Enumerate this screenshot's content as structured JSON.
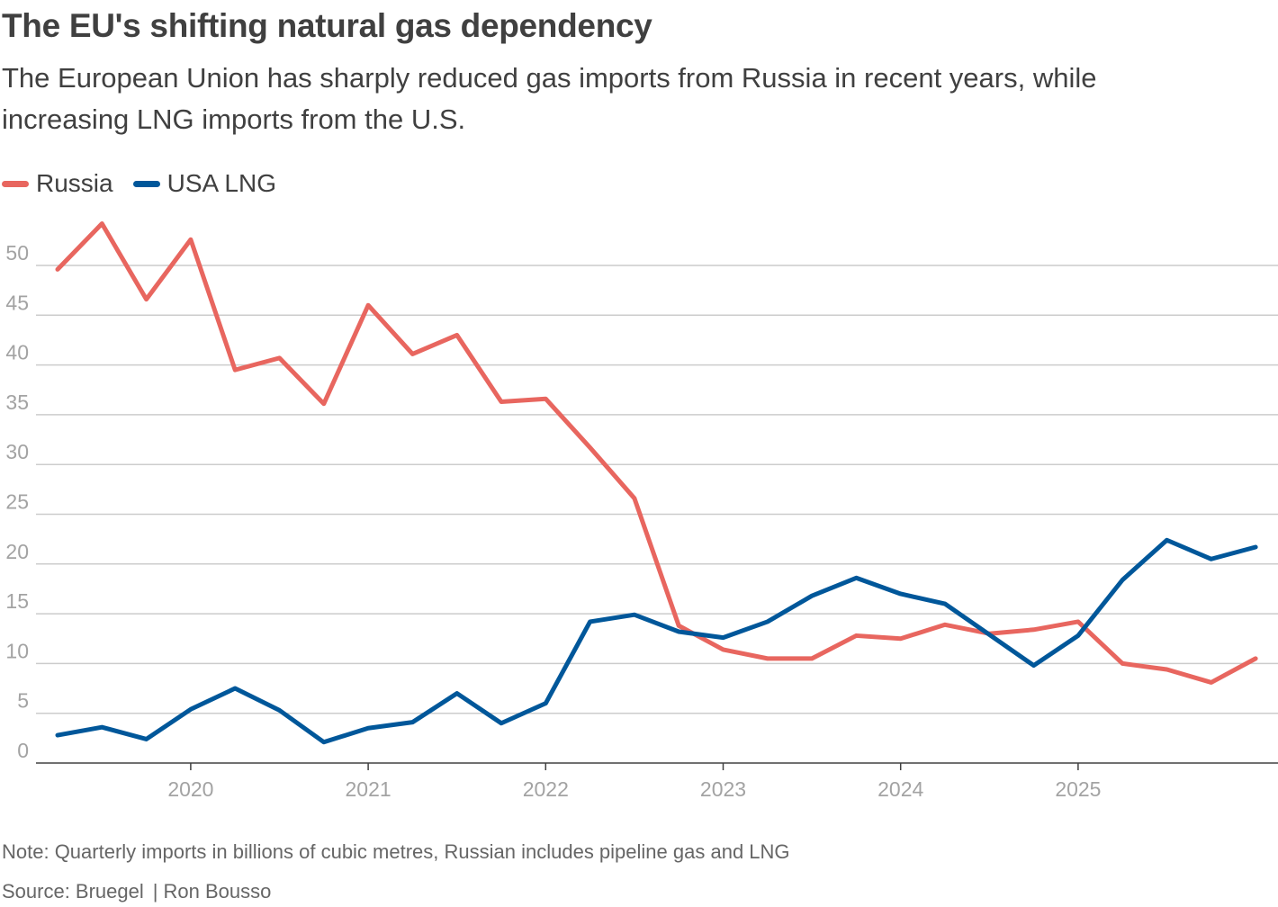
{
  "title": "The EU's shifting natural gas dependency",
  "subtitle": "The European Union has sharply reduced gas imports from Russia in recent years, while increasing LNG imports from the U.S.",
  "note": "Note: Quarterly imports in billions of cubic metres, Russian includes pipeline gas and LNG",
  "source": {
    "label": "Source: Bruegel",
    "author": "Ron Bousso"
  },
  "colors": {
    "russia": "#e8665f",
    "usa_lng": "#00579a",
    "grid": "#cccccc",
    "axis": "#404040",
    "tick_label": "#a3a3a3"
  },
  "chart_data": {
    "type": "line",
    "title": "The EU's shifting natural gas dependency",
    "xlabel": "",
    "ylabel": "",
    "ylim": [
      0,
      55
    ],
    "yticks": [
      0,
      5,
      10,
      15,
      20,
      25,
      30,
      35,
      40,
      45,
      50
    ],
    "xticks": [
      "2020",
      "2021",
      "2022",
      "2023",
      "2024",
      "2025"
    ],
    "x": [
      "2019-Q2",
      "2019-Q3",
      "2019-Q4",
      "2020-Q1",
      "2020-Q2",
      "2020-Q3",
      "2020-Q4",
      "2021-Q1",
      "2021-Q2",
      "2021-Q3",
      "2021-Q4",
      "2022-Q1",
      "2022-Q2",
      "2022-Q3",
      "2022-Q4",
      "2023-Q1",
      "2023-Q2",
      "2023-Q3",
      "2023-Q4",
      "2024-Q1",
      "2024-Q2",
      "2024-Q3",
      "2024-Q4",
      "2025-Q1",
      "2025-Q2",
      "2025-Q3",
      "2025-Q4",
      "2026-Q1"
    ],
    "grid": true,
    "legend_position": "top-left",
    "series": [
      {
        "name": "Russia",
        "color": "#e8665f",
        "values": [
          49.6,
          54.2,
          46.6,
          52.6,
          39.5,
          40.7,
          36.1,
          46.0,
          41.1,
          43.0,
          36.3,
          36.6,
          31.7,
          26.6,
          13.8,
          11.4,
          10.5,
          10.5,
          12.8,
          12.5,
          13.9,
          13.0,
          13.4,
          14.2,
          10.0,
          9.4,
          8.1,
          10.5
        ]
      },
      {
        "name": "USA LNG",
        "color": "#00579a",
        "values": [
          2.8,
          3.6,
          2.4,
          5.4,
          7.5,
          5.3,
          2.1,
          3.5,
          4.1,
          7.0,
          4.0,
          6.0,
          14.2,
          14.9,
          13.2,
          12.6,
          14.2,
          16.8,
          18.6,
          17.0,
          16.0,
          12.9,
          9.8,
          12.8,
          18.4,
          22.4,
          20.5,
          21.7
        ]
      }
    ]
  }
}
